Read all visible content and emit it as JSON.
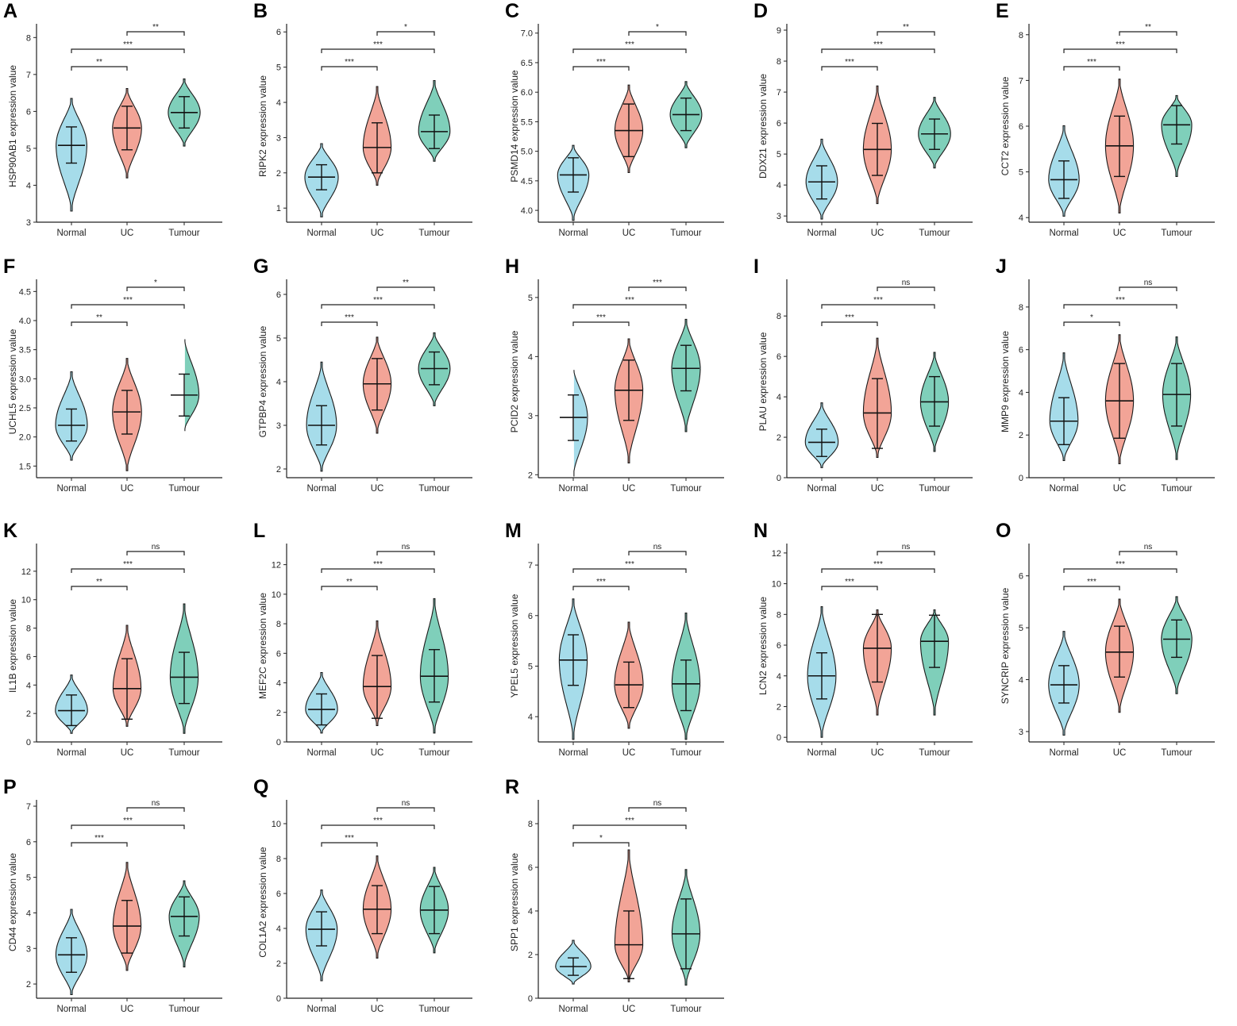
{
  "groups": [
    "Normal",
    "UC",
    "Tumour"
  ],
  "colors": {
    "Normal": "#a6dcea",
    "UC": "#f2a497",
    "Tumour": "#7fcfba",
    "stroke": "#1a1a1a"
  },
  "axis_suffix": " expression value",
  "chart_data": [
    {
      "type": "violin",
      "panel": "A",
      "gene": "HSP90AB1",
      "ylabel": "HSP90AB1 expression value",
      "ticks": [
        "3",
        "4",
        "5",
        "6",
        "7",
        "8"
      ],
      "ylim": [
        3,
        8.2
      ],
      "summary_keys": [
        "min",
        "q1",
        "median",
        "q3",
        "max"
      ],
      "series": [
        {
          "name": "Normal",
          "values": [
            3.3,
            4.6,
            5.08,
            5.58,
            6.35
          ]
        },
        {
          "name": "UC",
          "values": [
            4.2,
            4.96,
            5.55,
            6.14,
            6.62
          ]
        },
        {
          "name": "Tumour",
          "values": [
            5.06,
            5.55,
            5.97,
            6.4,
            6.88
          ]
        }
      ],
      "significance": {
        "Normal-UC": "**",
        "Normal-Tumour": "***",
        "UC-Tumour": "**"
      }
    },
    {
      "type": "violin",
      "panel": "B",
      "gene": "RIPK2",
      "ylabel": "RIPK2 expression value",
      "ticks": [
        "1",
        "2",
        "3",
        "4",
        "5",
        "6"
      ],
      "ylim": [
        0.6,
        6.05
      ],
      "summary_keys": [
        "min",
        "q1",
        "median",
        "q3",
        "max"
      ],
      "series": [
        {
          "name": "Normal",
          "values": [
            0.75,
            1.52,
            1.88,
            2.23,
            2.83
          ]
        },
        {
          "name": "UC",
          "values": [
            1.65,
            2.0,
            2.72,
            3.42,
            4.45
          ]
        },
        {
          "name": "Tumour",
          "values": [
            2.33,
            2.69,
            3.17,
            3.64,
            4.62
          ]
        }
      ],
      "significance": {
        "Normal-UC": "***",
        "Normal-Tumour": "***",
        "UC-Tumour": "*"
      }
    },
    {
      "type": "violin",
      "panel": "C",
      "gene": "PSMD14",
      "ylabel": "PSMD14 expression value",
      "ticks": [
        "4.0",
        "4.5",
        "5.0",
        "5.5",
        "6.0",
        "6.5",
        "7.0"
      ],
      "ylim": [
        3.8,
        7.05
      ],
      "summary_keys": [
        "min",
        "q1",
        "median",
        "q3",
        "max"
      ],
      "series": [
        {
          "name": "Normal",
          "values": [
            3.83,
            4.31,
            4.6,
            4.89,
            5.1
          ]
        },
        {
          "name": "UC",
          "values": [
            4.64,
            4.91,
            5.35,
            5.8,
            6.12
          ]
        },
        {
          "name": "Tumour",
          "values": [
            5.06,
            5.35,
            5.62,
            5.9,
            6.18
          ]
        }
      ],
      "significance": {
        "Normal-UC": "***",
        "Normal-Tumour": "***",
        "UC-Tumour": "*"
      }
    },
    {
      "type": "violin",
      "panel": "D",
      "gene": "DDX21",
      "ylabel": "DDX21 expression value",
      "ticks": [
        "3",
        "4",
        "5",
        "6",
        "7",
        "8",
        "9"
      ],
      "ylim": [
        2.8,
        9
      ],
      "summary_keys": [
        "min",
        "q1",
        "median",
        "q3",
        "max"
      ],
      "series": [
        {
          "name": "Normal",
          "values": [
            2.9,
            3.55,
            4.1,
            4.62,
            5.48
          ]
        },
        {
          "name": "UC",
          "values": [
            3.4,
            4.31,
            5.15,
            5.99,
            7.2
          ]
        },
        {
          "name": "Tumour",
          "values": [
            4.55,
            5.15,
            5.65,
            6.13,
            6.83
          ]
        }
      ],
      "significance": {
        "Normal-UC": "***",
        "Normal-Tumour": "***",
        "UC-Tumour": "**"
      }
    },
    {
      "type": "violin",
      "panel": "E",
      "gene": "CCT2",
      "ylabel": "CCT2 expression value",
      "ticks": [
        "4",
        "5",
        "6",
        "7",
        "8"
      ],
      "ylim": [
        3.9,
        8.1
      ],
      "summary_keys": [
        "min",
        "q1",
        "median",
        "q3",
        "max"
      ],
      "series": [
        {
          "name": "Normal",
          "values": [
            4.03,
            4.42,
            4.83,
            5.24,
            6.01
          ]
        },
        {
          "name": "UC",
          "values": [
            4.1,
            4.9,
            5.57,
            6.22,
            7.03
          ]
        },
        {
          "name": "Tumour",
          "values": [
            4.9,
            5.61,
            6.03,
            6.45,
            6.67
          ]
        }
      ],
      "significance": {
        "Normal-UC": "***",
        "Normal-Tumour": "***",
        "UC-Tumour": "**"
      }
    },
    {
      "type": "violin",
      "panel": "F",
      "gene": "UCHL5",
      "ylabel": "UCHL5 expression value",
      "ticks": [
        "1.5",
        "2.0",
        "2.5",
        "3.0",
        "3.5",
        "4.0",
        "4.5"
      ],
      "ylim": [
        1.3,
        4.6
      ],
      "summary_keys": [
        "min",
        "q1",
        "median",
        "q3",
        "max"
      ],
      "series": [
        {
          "name": "Normal",
          "values": [
            1.6,
            1.93,
            2.2,
            2.48,
            3.12
          ]
        },
        {
          "name": "UC",
          "values": [
            1.42,
            2.05,
            2.43,
            2.8,
            3.35
          ]
        },
        {
          "name": "Tumour",
          "values": [
            2.1,
            2.36,
            2.72,
            3.08,
            3.72
          ]
        }
      ],
      "significance": {
        "Normal-UC": "**",
        "Normal-Tumour": "***",
        "UC-Tumour": "*"
      }
    },
    {
      "type": "violin",
      "panel": "G",
      "gene": "GTPBP4",
      "ylabel": "GTPBP4 expression value",
      "ticks": [
        "2",
        "3",
        "4",
        "5",
        "6"
      ],
      "ylim": [
        1.8,
        6.2
      ],
      "summary_keys": [
        "min",
        "q1",
        "median",
        "q3",
        "max"
      ],
      "series": [
        {
          "name": "Normal",
          "values": [
            1.95,
            2.55,
            3.0,
            3.45,
            4.45
          ]
        },
        {
          "name": "UC",
          "values": [
            2.82,
            3.35,
            3.95,
            4.53,
            5.02
          ]
        },
        {
          "name": "Tumour",
          "values": [
            3.45,
            3.93,
            4.3,
            4.68,
            5.12
          ]
        }
      ],
      "significance": {
        "Normal-UC": "***",
        "Normal-Tumour": "***",
        "UC-Tumour": "**"
      }
    },
    {
      "type": "violin",
      "panel": "H",
      "gene": "PCID2",
      "ylabel": "PCID2 expression value",
      "ticks": [
        "2",
        "3",
        "4",
        "5"
      ],
      "ylim": [
        1.95,
        5.2
      ],
      "summary_keys": [
        "min",
        "q1",
        "median",
        "q3",
        "max"
      ],
      "series": [
        {
          "name": "Normal",
          "values": [
            1.97,
            2.58,
            2.97,
            3.35,
            3.82
          ]
        },
        {
          "name": "UC",
          "values": [
            2.2,
            2.92,
            3.43,
            3.94,
            4.3
          ]
        },
        {
          "name": "Tumour",
          "values": [
            2.73,
            3.42,
            3.8,
            4.19,
            4.63
          ]
        }
      ],
      "significance": {
        "Normal-UC": "***",
        "Normal-Tumour": "***",
        "UC-Tumour": "***"
      }
    },
    {
      "type": "violin",
      "panel": "I",
      "gene": "PLAU",
      "ylabel": "PLAU expression value",
      "ticks": [
        "0",
        "2",
        "4",
        "6",
        "8"
      ],
      "ylim": [
        0,
        9.5
      ],
      "summary_keys": [
        "min",
        "q1",
        "median",
        "q3",
        "max"
      ],
      "series": [
        {
          "name": "Normal",
          "values": [
            0.5,
            1.05,
            1.75,
            2.4,
            3.7
          ]
        },
        {
          "name": "UC",
          "values": [
            1.0,
            1.45,
            3.2,
            4.9,
            6.9
          ]
        },
        {
          "name": "Tumour",
          "values": [
            1.3,
            2.55,
            3.75,
            5.0,
            6.2
          ]
        }
      ],
      "significance": {
        "Normal-UC": "***",
        "Normal-Tumour": "***",
        "UC-Tumour": "ns"
      }
    },
    {
      "type": "violin",
      "panel": "J",
      "gene": "MMP9",
      "ylabel": "MMP9 expression value",
      "ticks": [
        "0",
        "2",
        "4",
        "6",
        "8"
      ],
      "ylim": [
        0,
        9
      ],
      "summary_keys": [
        "min",
        "q1",
        "median",
        "q3",
        "max"
      ],
      "series": [
        {
          "name": "Normal",
          "values": [
            0.8,
            1.55,
            2.65,
            3.75,
            5.85
          ]
        },
        {
          "name": "UC",
          "values": [
            0.65,
            1.85,
            3.6,
            5.35,
            6.7
          ]
        },
        {
          "name": "Tumour",
          "values": [
            0.85,
            2.42,
            3.9,
            5.35,
            6.6
          ]
        }
      ],
      "significance": {
        "Normal-UC": "*",
        "Normal-Tumour": "***",
        "UC-Tumour": "ns"
      }
    },
    {
      "type": "violin",
      "panel": "K",
      "gene": "IL1B",
      "ylabel": "IL1B expression value",
      "ticks": [
        "0",
        "2",
        "4",
        "6",
        "8",
        "10",
        "12"
      ],
      "ylim": [
        0,
        13.5
      ],
      "summary_keys": [
        "min",
        "q1",
        "median",
        "q3",
        "max"
      ],
      "series": [
        {
          "name": "Normal",
          "values": [
            0.6,
            1.15,
            2.2,
            3.3,
            4.7
          ]
        },
        {
          "name": "UC",
          "values": [
            1.1,
            1.6,
            3.75,
            5.85,
            8.2
          ]
        },
        {
          "name": "Tumour",
          "values": [
            0.6,
            2.7,
            4.55,
            6.3,
            9.7
          ]
        }
      ],
      "significance": {
        "Normal-UC": "**",
        "Normal-Tumour": "***",
        "UC-Tumour": "ns"
      }
    },
    {
      "type": "violin",
      "panel": "L",
      "gene": "MEF2C",
      "ylabel": "MEF2C expression value",
      "ticks": [
        "0",
        "2",
        "4",
        "6",
        "8",
        "10",
        "12"
      ],
      "ylim": [
        0,
        13
      ],
      "summary_keys": [
        "min",
        "q1",
        "median",
        "q3",
        "max"
      ],
      "series": [
        {
          "name": "Normal",
          "values": [
            0.6,
            1.15,
            2.2,
            3.25,
            4.7
          ]
        },
        {
          "name": "UC",
          "values": [
            1.1,
            1.6,
            3.75,
            5.85,
            8.2
          ]
        },
        {
          "name": "Tumour",
          "values": [
            0.6,
            2.7,
            4.45,
            6.25,
            9.7
          ]
        }
      ],
      "significance": {
        "Normal-UC": "**",
        "Normal-Tumour": "***",
        "UC-Tumour": "ns"
      }
    },
    {
      "type": "violin",
      "panel": "M",
      "gene": "YPEL5",
      "ylabel": "YPEL5 expression value",
      "ticks": [
        "4",
        "5",
        "6",
        "7"
      ],
      "ylim": [
        3.5,
        7.3
      ],
      "summary_keys": [
        "min",
        "q1",
        "median",
        "q3",
        "max"
      ],
      "series": [
        {
          "name": "Normal",
          "values": [
            3.55,
            4.62,
            5.12,
            5.62,
            6.33
          ]
        },
        {
          "name": "UC",
          "values": [
            3.77,
            4.18,
            4.63,
            5.08,
            5.87
          ]
        },
        {
          "name": "Tumour",
          "values": [
            3.55,
            4.12,
            4.65,
            5.12,
            6.05
          ]
        }
      ],
      "significance": {
        "Normal-UC": "***",
        "Normal-Tumour": "***",
        "UC-Tumour": "ns"
      }
    },
    {
      "type": "violin",
      "panel": "N",
      "gene": "LCN2",
      "ylabel": "LCN2 expression value",
      "ticks": [
        "0",
        "2",
        "4",
        "6",
        "8",
        "10",
        "12"
      ],
      "ylim": [
        -0.3,
        12.2
      ],
      "summary_keys": [
        "min",
        "q1",
        "median",
        "q3",
        "max"
      ],
      "series": [
        {
          "name": "Normal",
          "values": [
            0,
            2.5,
            4.0,
            5.5,
            8.5
          ]
        },
        {
          "name": "UC",
          "values": [
            1.45,
            3.6,
            5.8,
            8.0,
            8.3
          ]
        },
        {
          "name": "Tumour",
          "values": [
            1.45,
            4.55,
            6.25,
            7.95,
            8.3
          ]
        }
      ],
      "significance": {
        "Normal-UC": "***",
        "Normal-Tumour": "***",
        "UC-Tumour": "ns"
      }
    },
    {
      "type": "violin",
      "panel": "O",
      "gene": "SYNCRIP",
      "ylabel": "SYNCRIP expression value",
      "ticks": [
        "3",
        "4",
        "5",
        "6"
      ],
      "ylim": [
        2.8,
        6.5
      ],
      "summary_keys": [
        "min",
        "q1",
        "median",
        "q3",
        "max"
      ],
      "series": [
        {
          "name": "Normal",
          "values": [
            2.93,
            3.55,
            3.9,
            4.27,
            4.93
          ]
        },
        {
          "name": "UC",
          "values": [
            3.37,
            4.05,
            4.53,
            5.03,
            5.55
          ]
        },
        {
          "name": "Tumour",
          "values": [
            3.73,
            4.43,
            4.78,
            5.15,
            5.6
          ]
        }
      ],
      "significance": {
        "Normal-UC": "***",
        "Normal-Tumour": "***",
        "UC-Tumour": "ns"
      }
    },
    {
      "type": "violin",
      "panel": "P",
      "gene": "CD44",
      "ylabel": "CD44 expression value",
      "ticks": [
        "2",
        "3",
        "4",
        "5",
        "6",
        "7"
      ],
      "ylim": [
        1.6,
        7
      ],
      "summary_keys": [
        "min",
        "q1",
        "median",
        "q3",
        "max"
      ],
      "series": [
        {
          "name": "Normal",
          "values": [
            1.7,
            2.33,
            2.82,
            3.3,
            4.1
          ]
        },
        {
          "name": "UC",
          "values": [
            2.38,
            2.87,
            3.63,
            4.35,
            5.42
          ]
        },
        {
          "name": "Tumour",
          "values": [
            2.48,
            3.35,
            3.9,
            4.45,
            4.9
          ]
        }
      ],
      "significance": {
        "Normal-UC": "***",
        "Normal-Tumour": "***",
        "UC-Tumour": "ns"
      }
    },
    {
      "type": "violin",
      "panel": "Q",
      "gene": "COL1A2",
      "ylabel": "COL1A2 expression value",
      "ticks": [
        "0",
        "2",
        "4",
        "6",
        "8",
        "10"
      ],
      "ylim": [
        0,
        11
      ],
      "summary_keys": [
        "min",
        "q1",
        "median",
        "q3",
        "max"
      ],
      "series": [
        {
          "name": "Normal",
          "values": [
            1.0,
            3.0,
            3.95,
            4.95,
            6.2
          ]
        },
        {
          "name": "UC",
          "values": [
            2.3,
            3.7,
            5.1,
            6.45,
            8.15
          ]
        },
        {
          "name": "Tumour",
          "values": [
            2.6,
            3.7,
            5.05,
            6.4,
            7.5
          ]
        }
      ],
      "significance": {
        "Normal-UC": "***",
        "Normal-Tumour": "***",
        "UC-Tumour": "ns"
      }
    },
    {
      "type": "violin",
      "panel": "R",
      "gene": "SPP1",
      "ylabel": "SPP1 expression value",
      "ticks": [
        "0",
        "2",
        "4",
        "6",
        "8"
      ],
      "ylim": [
        0,
        8.8
      ],
      "summary_keys": [
        "min",
        "q1",
        "median",
        "q3",
        "max"
      ],
      "series": [
        {
          "name": "Normal",
          "values": [
            0.65,
            1.05,
            1.45,
            1.85,
            2.65
          ]
        },
        {
          "name": "UC",
          "values": [
            0.75,
            0.9,
            2.45,
            4.0,
            6.8
          ]
        },
        {
          "name": "Tumour",
          "values": [
            0.6,
            1.35,
            2.95,
            4.55,
            5.9
          ]
        }
      ],
      "significance": {
        "Normal-UC": "*",
        "Normal-Tumour": "***",
        "UC-Tumour": "ns"
      }
    }
  ]
}
